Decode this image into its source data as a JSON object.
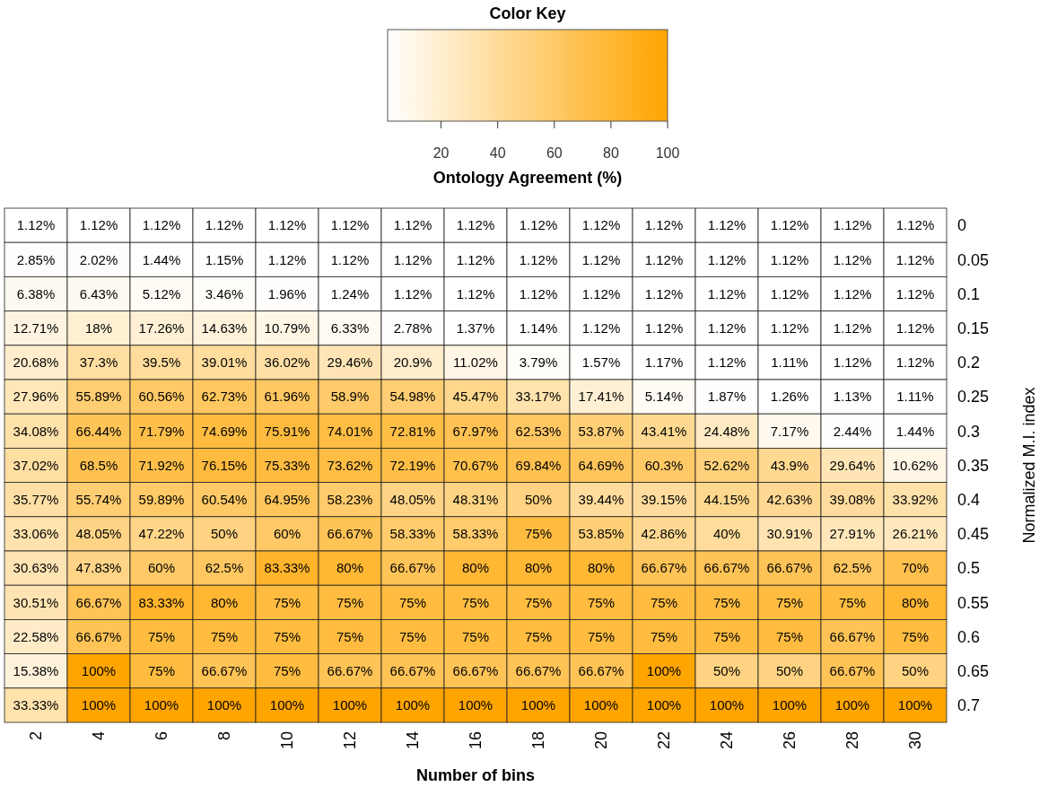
{
  "chart_data": {
    "type": "heatmap",
    "legend_title": "Color Key",
    "clabel": "Ontology Agreement (%)",
    "xlabel": "Number of bins",
    "ylabel": "Normalized M.I. index",
    "categories": [
      "2",
      "4",
      "6",
      "8",
      "10",
      "12",
      "14",
      "16",
      "18",
      "20",
      "22",
      "24",
      "26",
      "28",
      "30"
    ],
    "y_categories": [
      "0",
      "0.05",
      "0.1",
      "0.15",
      "0.2",
      "0.25",
      "0.3",
      "0.35",
      "0.4",
      "0.45",
      "0.5",
      "0.55",
      "0.6",
      "0.65",
      "0.7"
    ],
    "clim": [
      1.11,
      100
    ],
    "cticks": [
      20,
      40,
      60,
      80,
      100
    ],
    "colors": [
      "#ffffff",
      "#ffa500"
    ],
    "cells": [
      [
        1.12,
        1.12,
        1.12,
        1.12,
        1.12,
        1.12,
        1.12,
        1.12,
        1.12,
        1.12,
        1.12,
        1.12,
        1.12,
        1.12,
        1.12
      ],
      [
        2.85,
        2.02,
        1.44,
        1.15,
        1.12,
        1.12,
        1.12,
        1.12,
        1.12,
        1.12,
        1.12,
        1.12,
        1.12,
        1.12,
        1.12
      ],
      [
        6.38,
        6.43,
        5.12,
        3.46,
        1.96,
        1.24,
        1.12,
        1.12,
        1.12,
        1.12,
        1.12,
        1.12,
        1.12,
        1.12,
        1.12
      ],
      [
        12.71,
        18,
        17.26,
        14.63,
        10.79,
        6.33,
        2.78,
        1.37,
        1.14,
        1.12,
        1.12,
        1.12,
        1.12,
        1.12,
        1.12
      ],
      [
        20.68,
        37.3,
        39.5,
        39.01,
        36.02,
        29.46,
        20.9,
        11.02,
        3.79,
        1.57,
        1.17,
        1.12,
        1.11,
        1.12,
        1.12
      ],
      [
        27.96,
        55.89,
        60.56,
        62.73,
        61.96,
        58.9,
        54.98,
        45.47,
        33.17,
        17.41,
        5.14,
        1.87,
        1.26,
        1.13,
        1.11
      ],
      [
        34.08,
        66.44,
        71.79,
        74.69,
        75.91,
        74.01,
        72.81,
        67.97,
        62.53,
        53.87,
        43.41,
        24.48,
        7.17,
        2.44,
        1.44
      ],
      [
        37.02,
        68.5,
        71.92,
        76.15,
        75.33,
        73.62,
        72.19,
        70.67,
        69.84,
        64.69,
        60.3,
        52.62,
        43.9,
        29.64,
        10.62
      ],
      [
        35.77,
        55.74,
        59.89,
        60.54,
        64.95,
        58.23,
        48.05,
        48.31,
        50,
        39.44,
        39.15,
        44.15,
        42.63,
        39.08,
        33.92
      ],
      [
        33.06,
        48.05,
        47.22,
        50,
        60,
        66.67,
        58.33,
        58.33,
        75,
        53.85,
        42.86,
        40,
        30.91,
        27.91,
        26.21
      ],
      [
        30.63,
        47.83,
        60,
        62.5,
        83.33,
        80,
        66.67,
        80,
        80,
        80,
        66.67,
        66.67,
        66.67,
        62.5,
        70
      ],
      [
        30.51,
        66.67,
        83.33,
        80,
        75,
        75,
        75,
        75,
        75,
        75,
        75,
        75,
        75,
        75,
        80
      ],
      [
        22.58,
        66.67,
        75,
        75,
        75,
        75,
        75,
        75,
        75,
        75,
        75,
        75,
        75,
        66.67,
        75
      ],
      [
        15.38,
        100,
        75,
        66.67,
        75,
        66.67,
        66.67,
        66.67,
        66.67,
        66.67,
        100,
        50,
        50,
        66.67,
        50
      ],
      [
        33.33,
        100,
        100,
        100,
        100,
        100,
        100,
        100,
        100,
        100,
        100,
        100,
        100,
        100,
        100
      ]
    ],
    "cell_labels": [
      [
        "1.12%",
        "1.12%",
        "1.12%",
        "1.12%",
        "1.12%",
        "1.12%",
        "1.12%",
        "1.12%",
        "1.12%",
        "1.12%",
        "1.12%",
        "1.12%",
        "1.12%",
        "1.12%",
        "1.12%"
      ],
      [
        "2.85%",
        "2.02%",
        "1.44%",
        "1.15%",
        "1.12%",
        "1.12%",
        "1.12%",
        "1.12%",
        "1.12%",
        "1.12%",
        "1.12%",
        "1.12%",
        "1.12%",
        "1.12%",
        "1.12%"
      ],
      [
        "6.38%",
        "6.43%",
        "5.12%",
        "3.46%",
        "1.96%",
        "1.24%",
        "1.12%",
        "1.12%",
        "1.12%",
        "1.12%",
        "1.12%",
        "1.12%",
        "1.12%",
        "1.12%",
        "1.12%"
      ],
      [
        "12.71%",
        "18%",
        "17.26%",
        "14.63%",
        "10.79%",
        "6.33%",
        "2.78%",
        "1.37%",
        "1.14%",
        "1.12%",
        "1.12%",
        "1.12%",
        "1.12%",
        "1.12%",
        "1.12%"
      ],
      [
        "20.68%",
        "37.3%",
        "39.5%",
        "39.01%",
        "36.02%",
        "29.46%",
        "20.9%",
        "11.02%",
        "3.79%",
        "1.57%",
        "1.17%",
        "1.12%",
        "1.11%",
        "1.12%",
        "1.12%"
      ],
      [
        "27.96%",
        "55.89%",
        "60.56%",
        "62.73%",
        "61.96%",
        "58.9%",
        "54.98%",
        "45.47%",
        "33.17%",
        "17.41%",
        "5.14%",
        "1.87%",
        "1.26%",
        "1.13%",
        "1.11%"
      ],
      [
        "34.08%",
        "66.44%",
        "71.79%",
        "74.69%",
        "75.91%",
        "74.01%",
        "72.81%",
        "67.97%",
        "62.53%",
        "53.87%",
        "43.41%",
        "24.48%",
        "7.17%",
        "2.44%",
        "1.44%"
      ],
      [
        "37.02%",
        "68.5%",
        "71.92%",
        "76.15%",
        "75.33%",
        "73.62%",
        "72.19%",
        "70.67%",
        "69.84%",
        "64.69%",
        "60.3%",
        "52.62%",
        "43.9%",
        "29.64%",
        "10.62%"
      ],
      [
        "35.77%",
        "55.74%",
        "59.89%",
        "60.54%",
        "64.95%",
        "58.23%",
        "48.05%",
        "48.31%",
        "50%",
        "39.44%",
        "39.15%",
        "44.15%",
        "42.63%",
        "39.08%",
        "33.92%"
      ],
      [
        "33.06%",
        "48.05%",
        "47.22%",
        "50%",
        "60%",
        "66.67%",
        "58.33%",
        "58.33%",
        "75%",
        "53.85%",
        "42.86%",
        "40%",
        "30.91%",
        "27.91%",
        "26.21%"
      ],
      [
        "30.63%",
        "47.83%",
        "60%",
        "62.5%",
        "83.33%",
        "80%",
        "66.67%",
        "80%",
        "80%",
        "80%",
        "66.67%",
        "66.67%",
        "66.67%",
        "62.5%",
        "70%"
      ],
      [
        "30.51%",
        "66.67%",
        "83.33%",
        "80%",
        "75%",
        "75%",
        "75%",
        "75%",
        "75%",
        "75%",
        "75%",
        "75%",
        "75%",
        "75%",
        "80%"
      ],
      [
        "22.58%",
        "66.67%",
        "75%",
        "75%",
        "75%",
        "75%",
        "75%",
        "75%",
        "75%",
        "75%",
        "75%",
        "75%",
        "75%",
        "66.67%",
        "75%"
      ],
      [
        "15.38%",
        "100%",
        "75%",
        "66.67%",
        "75%",
        "66.67%",
        "66.67%",
        "66.67%",
        "66.67%",
        "66.67%",
        "100%",
        "50%",
        "50%",
        "66.67%",
        "50%"
      ],
      [
        "33.33%",
        "100%",
        "100%",
        "100%",
        "100%",
        "100%",
        "100%",
        "100%",
        "100%",
        "100%",
        "100%",
        "100%",
        "100%",
        "100%",
        "100%"
      ]
    ]
  }
}
